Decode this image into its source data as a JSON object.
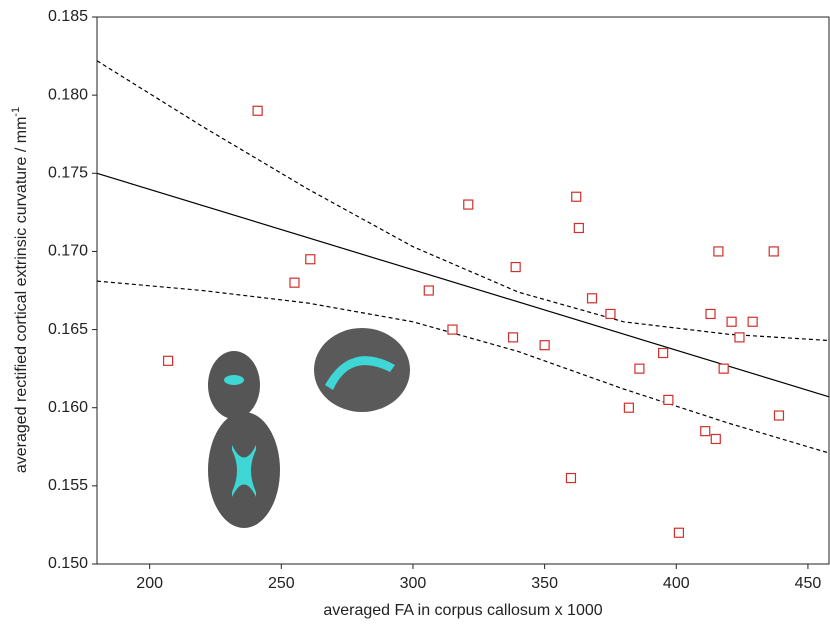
{
  "chart_data": {
    "type": "scatter",
    "x_label": "averaged FA in corpus callosum x 1000",
    "y_label": "averaged rectified cortical extrinsic curvature / mm",
    "y_label_sup": "-1",
    "xlim": [
      180,
      458
    ],
    "ylim": [
      0.15,
      0.185
    ],
    "xticks": [
      200,
      250,
      300,
      350,
      400,
      450
    ],
    "yticks": [
      {
        "value": 0.15,
        "label": "0.150"
      },
      0.155,
      {
        "value": 0.16,
        "label": "0.160"
      },
      0.165,
      {
        "value": 0.17,
        "label": "0.170"
      },
      0.175,
      {
        "value": 0.18,
        "label": "0.180"
      },
      0.185
    ],
    "points": {
      "color": "#d0302c",
      "x": [
        207,
        241,
        255,
        261,
        306,
        315,
        321,
        338,
        339,
        350,
        360,
        362,
        363,
        368,
        375,
        382,
        386,
        395,
        397,
        401,
        411,
        413,
        415,
        416,
        418,
        421,
        424,
        429,
        437,
        439
      ],
      "y": [
        0.163,
        0.179,
        0.168,
        0.1695,
        0.1675,
        0.165,
        0.173,
        0.1645,
        0.169,
        0.164,
        0.1555,
        0.1735,
        0.1715,
        0.167,
        0.166,
        0.16,
        0.1625,
        0.1635,
        0.1605,
        0.152,
        0.1585,
        0.166,
        0.158,
        0.17,
        0.1625,
        0.1655,
        0.1645,
        0.1655,
        0.17,
        0.1595
      ]
    },
    "fit_line": {
      "color": "#000000",
      "x": [
        180,
        458
      ],
      "y": [
        0.175,
        0.1607
      ]
    },
    "upper_band": {
      "color": "#000000",
      "x": [
        180,
        220,
        260,
        300,
        340,
        380,
        420,
        458
      ],
      "y": [
        0.1822,
        0.178,
        0.174,
        0.1703,
        0.1674,
        0.1655,
        0.1647,
        0.1643
      ]
    },
    "lower_band": {
      "color": "#000000",
      "x": [
        180,
        220,
        260,
        300,
        340,
        380,
        420,
        458
      ],
      "y": [
        0.1681,
        0.1675,
        0.1667,
        0.1655,
        0.1636,
        0.1612,
        0.159,
        0.1571
      ]
    }
  }
}
